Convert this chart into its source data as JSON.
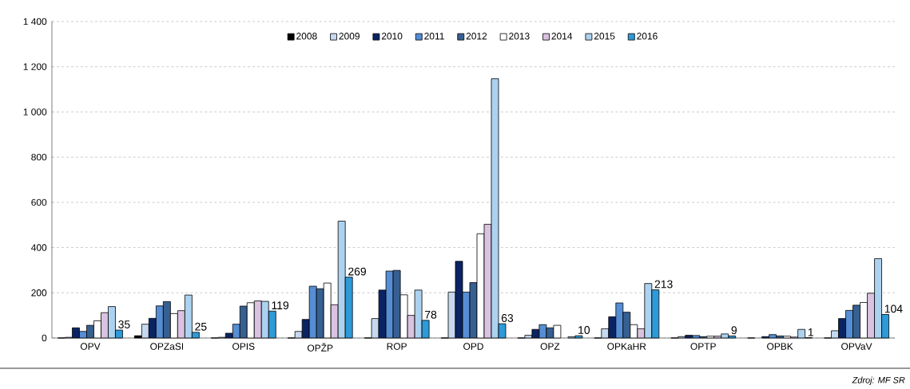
{
  "chart_data": {
    "type": "bar",
    "categories": [
      "OPV",
      "OPZaSI",
      "OPIS",
      "OPŽP",
      "ROP",
      "OPD",
      "OPZ",
      "OPKaHR",
      "OPTP",
      "OPBK",
      "OPVaV"
    ],
    "series": [
      {
        "name": "2008",
        "color": "#000000",
        "values": [
          0,
          10,
          0,
          0,
          0,
          0,
          0,
          0,
          0,
          0,
          0
        ]
      },
      {
        "name": "2009",
        "color": "#c6d9f0",
        "values": [
          3,
          61,
          3,
          29,
          86,
          203,
          12,
          41,
          6,
          null,
          32
        ]
      },
      {
        "name": "2010",
        "color": "#0a2463",
        "values": [
          45,
          87,
          21,
          82,
          212,
          339,
          38,
          94,
          12,
          6,
          86
        ]
      },
      {
        "name": "2011",
        "color": "#558ed5",
        "values": [
          29,
          142,
          61,
          229,
          296,
          203,
          59,
          155,
          11,
          15,
          122
        ]
      },
      {
        "name": "2012",
        "color": "#376092",
        "values": [
          56,
          161,
          141,
          218,
          299,
          245,
          45,
          114,
          6,
          9,
          145
        ]
      },
      {
        "name": "2013",
        "color": "#ffffff",
        "values": [
          76,
          108,
          156,
          243,
          191,
          461,
          56,
          59,
          8,
          8,
          157
        ]
      },
      {
        "name": "2014",
        "color": "#d9c3e0",
        "values": [
          112,
          121,
          164,
          147,
          100,
          503,
          null,
          41,
          8,
          4,
          198
        ]
      },
      {
        "name": "2015",
        "color": "#acd2f0",
        "values": [
          139,
          190,
          162,
          517,
          212,
          1147,
          5,
          241,
          18,
          38,
          351
        ]
      },
      {
        "name": "2016",
        "color": "#2e9ad8",
        "values": [
          35,
          25,
          119,
          269,
          78,
          63,
          10,
          213,
          9,
          1,
          104
        ],
        "value_labels": [
          "35",
          "25",
          "119",
          "269",
          "78",
          "63",
          "10",
          "213",
          "9",
          "1",
          "104"
        ]
      }
    ],
    "ylim": [
      0,
      1400
    ],
    "yticks": [
      0,
      200,
      400,
      600,
      800,
      {
        "value": 1000,
        "label": "1 000"
      },
      {
        "value": 1200,
        "label": "1 200"
      },
      {
        "value": 1400,
        "label": "1 400"
      }
    ],
    "grid": "y",
    "legend": "top",
    "annotations": [
      "Zdroj: MF SR"
    ]
  }
}
